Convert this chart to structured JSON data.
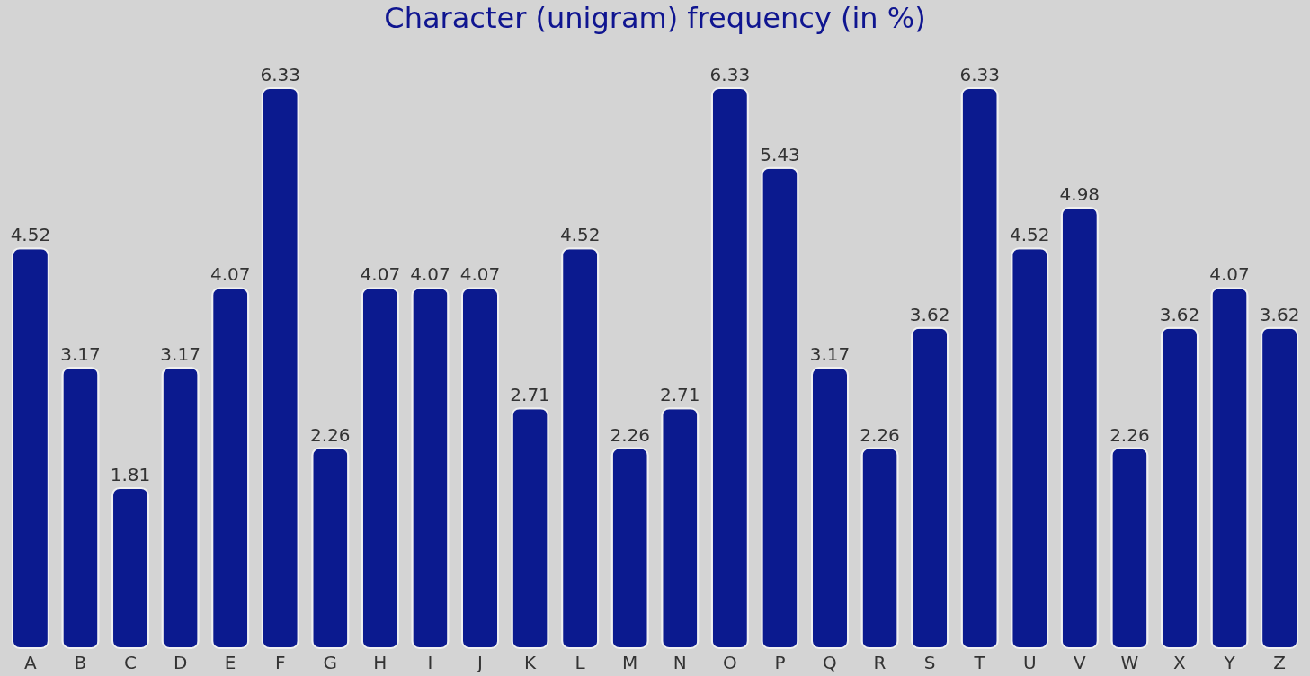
{
  "chart_data": {
    "type": "bar",
    "title": "Character (unigram) frequency (in %)",
    "categories": [
      "A",
      "B",
      "C",
      "D",
      "E",
      "F",
      "G",
      "H",
      "I",
      "J",
      "K",
      "L",
      "M",
      "N",
      "O",
      "P",
      "Q",
      "R",
      "S",
      "T",
      "U",
      "V",
      "W",
      "X",
      "Y",
      "Z"
    ],
    "values": [
      4.52,
      3.17,
      1.81,
      3.17,
      4.07,
      6.33,
      2.26,
      4.07,
      4.07,
      4.07,
      2.71,
      4.52,
      2.26,
      2.71,
      6.33,
      5.43,
      3.17,
      2.26,
      3.62,
      6.33,
      4.52,
      4.98,
      2.26,
      3.62,
      4.07,
      3.62
    ],
    "color": "#0b1a8f",
    "data_labels": true,
    "grid": false
  }
}
